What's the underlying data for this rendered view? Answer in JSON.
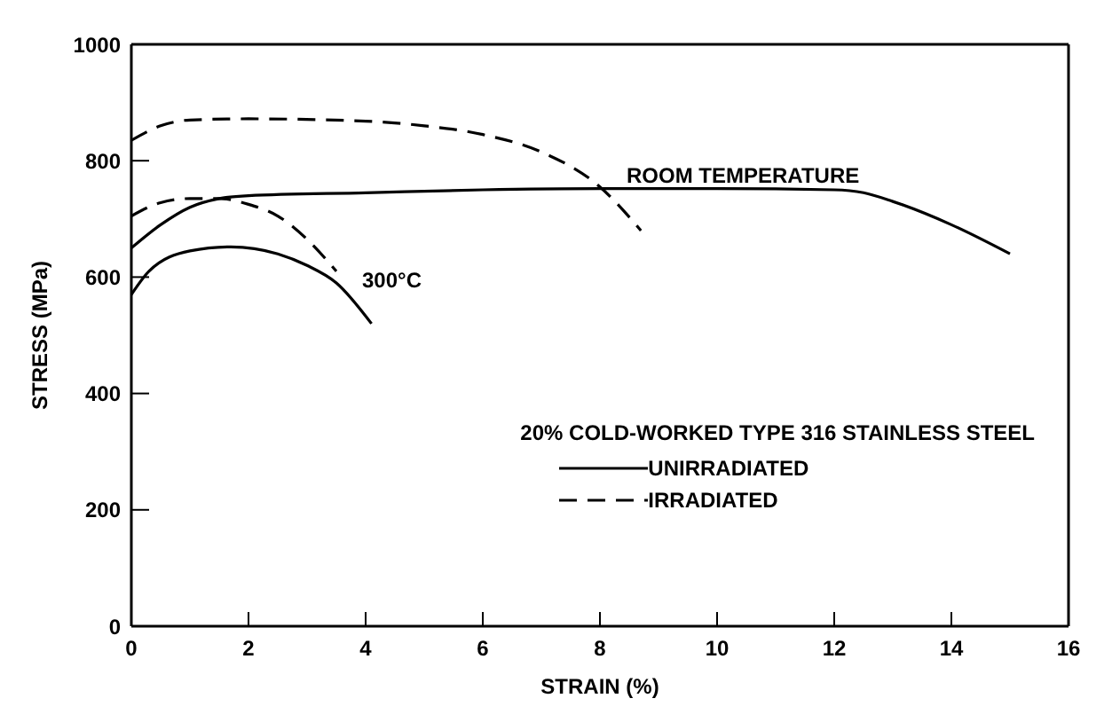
{
  "chart_data": {
    "type": "line",
    "xlabel": "STRAIN (%)",
    "ylabel": "STRESS (MPa)",
    "legend_title": "20% COLD-WORKED TYPE 316 STAINLESS STEEL",
    "xlim": [
      0,
      16
    ],
    "xticks": [
      0,
      2,
      4,
      6,
      8,
      10,
      12,
      14,
      16
    ],
    "ylim": [
      0,
      1000
    ],
    "yticks": [
      0,
      200,
      400,
      600,
      800,
      1000
    ],
    "legend": "bottom right",
    "marker": "none",
    "series": [
      {
        "name": "UNIRRADIATED",
        "color": "#000000",
        "line_style": "solid",
        "x": [
          0,
          0.5,
          1,
          1.5,
          2,
          4,
          6,
          8,
          10,
          12,
          12.5,
          13,
          14,
          15
        ],
        "values": [
          650,
          690,
          720,
          735,
          740,
          745,
          750,
          752,
          752,
          750,
          745,
          730,
          690,
          640
        ]
      },
      {
        "name": "IRRADIATED",
        "color": "#000000",
        "line_style": "dashed",
        "x": [
          0,
          0.5,
          1,
          2,
          4,
          5,
          6,
          7,
          8,
          8.7
        ],
        "values": [
          835,
          860,
          870,
          872,
          868,
          860,
          845,
          815,
          755,
          680
        ]
      },
      {
        "color": "#000000",
        "line_style": "solid",
        "x": [
          0,
          0.3,
          1,
          1.7,
          2.5,
          3,
          3.5,
          4.1
        ],
        "values": [
          570,
          610,
          645,
          652,
          640,
          620,
          590,
          520
        ]
      },
      {
        "color": "#000000",
        "line_style": "dashed",
        "x": [
          0,
          0.5,
          1,
          1.5,
          2,
          2.5,
          3,
          3.5
        ],
        "values": [
          705,
          728,
          735,
          735,
          725,
          705,
          665,
          610
        ]
      }
    ],
    "annotations": [
      "ROOM TEMPERATURE",
      "300°C"
    ]
  }
}
